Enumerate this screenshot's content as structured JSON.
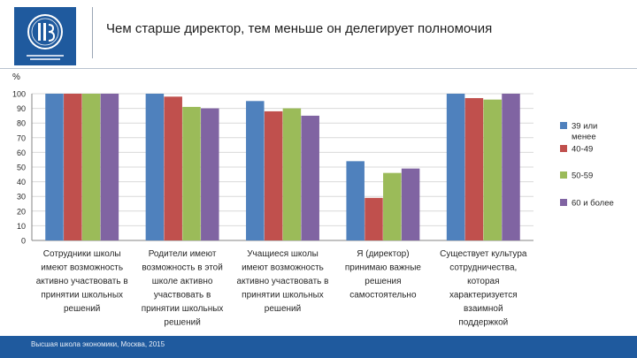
{
  "slide": {
    "title": "Чем старше директор, тем меньше он делегирует полномочия",
    "footer": "Высшая школа экономики, Москва, 2015"
  },
  "colors": {
    "brand": "#1f5a9e",
    "series": [
      "#4f81bd",
      "#c0504d",
      "#9bbb59",
      "#8064a2"
    ]
  },
  "chart_data": {
    "type": "bar",
    "ylabel": "%",
    "ylim": [
      0,
      100
    ],
    "yticks": [
      0,
      10,
      20,
      30,
      40,
      50,
      60,
      70,
      80,
      90,
      100
    ],
    "grid": true,
    "legend_position": "right",
    "categories": [
      "Сотрудники школы имеют возможность активно участвовать в принятии школьных решений",
      "Родители имеют возможность в этой школе активно участвовать в принятии школьных решений",
      "Учащиеся школы имеют возможность активно участвовать в принятии школьных решений",
      "Я (директор) принимаю важные решения самостоятельно",
      "Существует культура сотрудничества, которая характеризуется взаимной поддержкой"
    ],
    "category_lines": [
      [
        "Сотрудники школы",
        "имеют возможность",
        "активно участвовать в",
        "принятии школьных",
        "решений"
      ],
      [
        "Родители имеют",
        "возможность в этой",
        "школе активно",
        "участвовать в",
        "принятии школьных",
        "решений"
      ],
      [
        "Учащиеся школы",
        "имеют возможность",
        "активно участвовать в",
        "принятии школьных",
        "решений"
      ],
      [
        "Я (директор)",
        "принимаю важные",
        "решения",
        "самостоятельно"
      ],
      [
        "Существует культура",
        "сотрудничества,",
        "которая",
        "характеризуется",
        "взаимной",
        "поддержкой"
      ]
    ],
    "series": [
      {
        "name": "39 или менее",
        "legend_lines": [
          "39 или",
          "менее"
        ],
        "values": [
          100,
          100,
          95,
          54,
          100
        ]
      },
      {
        "name": "40-49",
        "legend_lines": [
          "40-49"
        ],
        "values": [
          100,
          98,
          88,
          29,
          97
        ]
      },
      {
        "name": "50-59",
        "legend_lines": [
          "50-59"
        ],
        "values": [
          100,
          91,
          90,
          46,
          96
        ]
      },
      {
        "name": "60 и более",
        "legend_lines": [
          "60 и более"
        ],
        "values": [
          100,
          90,
          85,
          49,
          100
        ]
      }
    ]
  }
}
